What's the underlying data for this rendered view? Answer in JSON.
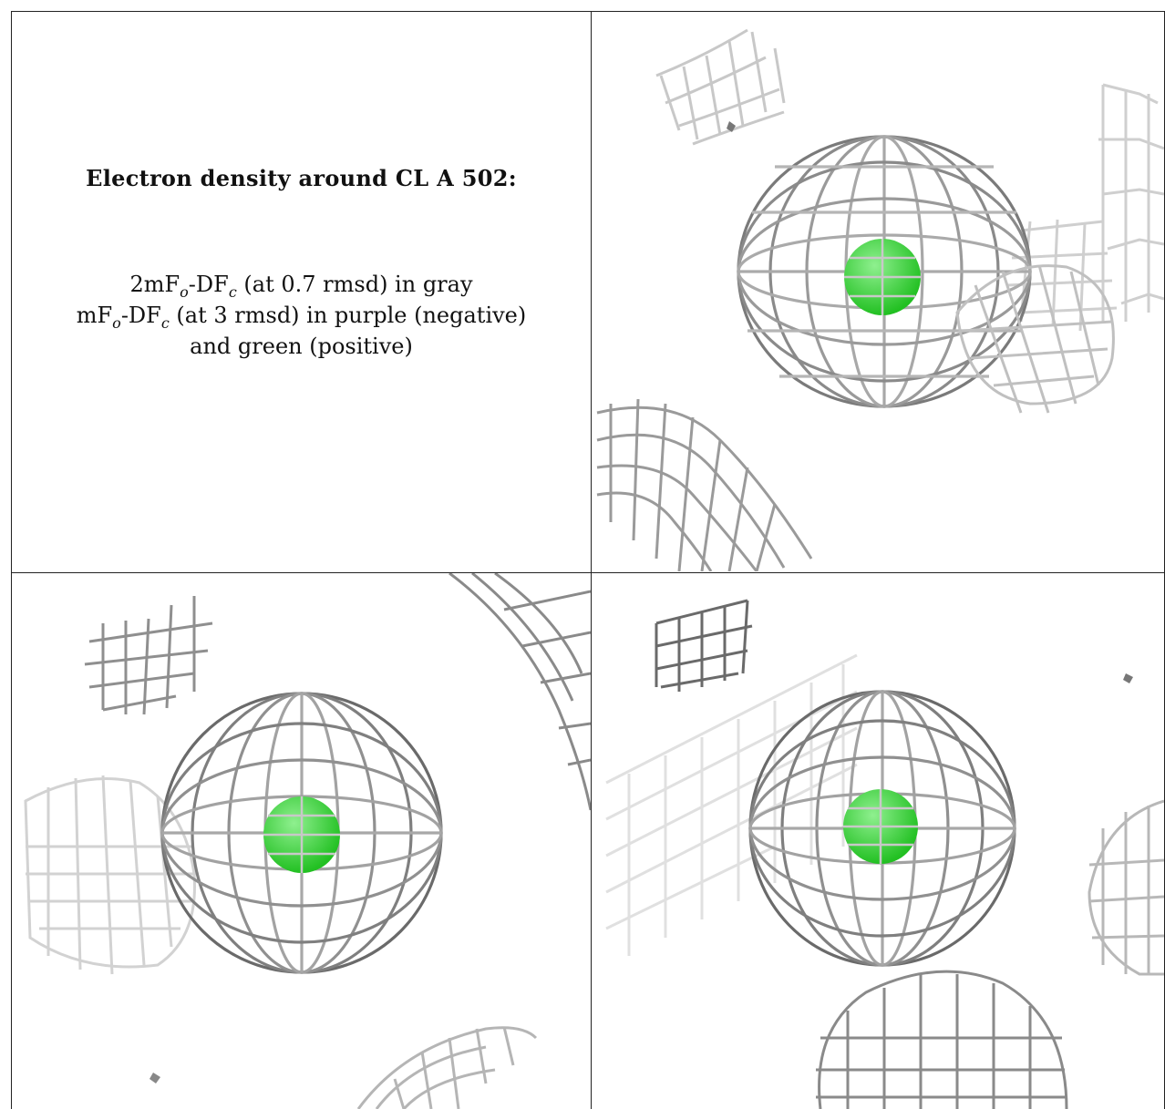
{
  "figure": {
    "title": "Electron density around CL A 502:",
    "legend": {
      "line1": {
        "pre": "2mF",
        "sub1": "o",
        "mid": "-DF",
        "sub2": "c",
        "post": " (at 0.7 rmsd) in gray"
      },
      "line2": {
        "pre": "mF",
        "sub1": "o",
        "mid": "-DF",
        "sub2": "c",
        "post": " (at 3 rmsd) in purple (negative)"
      },
      "line3": "and green (positive)"
    }
  },
  "colors": {
    "mesh_dark": "#5a5a5a",
    "mesh_mid": "#8f8f8f",
    "mesh_light": "#c8c8c8",
    "mesh_faint": "#e2e2e2",
    "atom": "#22d322",
    "atom_highlight": "#8ff08f",
    "border": "#222222"
  },
  "panels": [
    {
      "name": "view-top-right",
      "atom": "chloride-sphere"
    },
    {
      "name": "view-bottom-left",
      "atom": "chloride-sphere"
    },
    {
      "name": "view-bottom-right",
      "atom": "chloride-sphere"
    }
  ]
}
